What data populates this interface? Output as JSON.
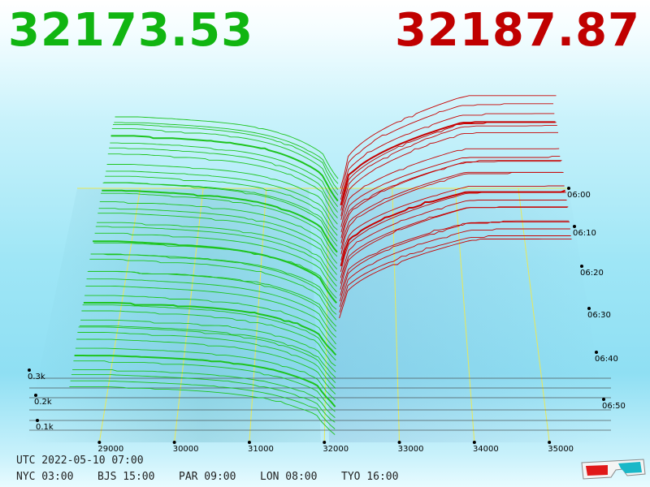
{
  "prices": {
    "bid": "32173.53",
    "ask": "32187.87"
  },
  "colors": {
    "bid": "#11b511",
    "ask": "#c00000",
    "bid_line": "#1ec41e",
    "ask_line": "#c80000",
    "grid": "#e8e85a",
    "marker": "#cc33cc"
  },
  "clock": {
    "utc": "UTC 2022-05-10 07:00",
    "zones": [
      "NYC 03:00",
      "BJS 15:00",
      "PAR 09:00",
      "LON 08:00",
      "TYO 16:00"
    ]
  },
  "chart_data": {
    "type": "area",
    "description_hint": "3D order book depth over time",
    "x_ticks": [
      "29000",
      "30000",
      "31000",
      "32000",
      "33000",
      "34000",
      "35000"
    ],
    "x_tick_values": [
      29000,
      30000,
      31000,
      32000,
      33000,
      34000,
      35000
    ],
    "depth_ticks": [
      "0.3k",
      "0.2k",
      "0.1k"
    ],
    "depth_tick_values": [
      300,
      200,
      100
    ],
    "time_ticks": [
      "06:00",
      "06:10",
      "06:20",
      "06:30",
      "06:40",
      "06:50"
    ],
    "mid_price": 32180,
    "series": [
      {
        "name": "bids",
        "side": "bid"
      },
      {
        "name": "asks",
        "side": "ask"
      }
    ]
  }
}
